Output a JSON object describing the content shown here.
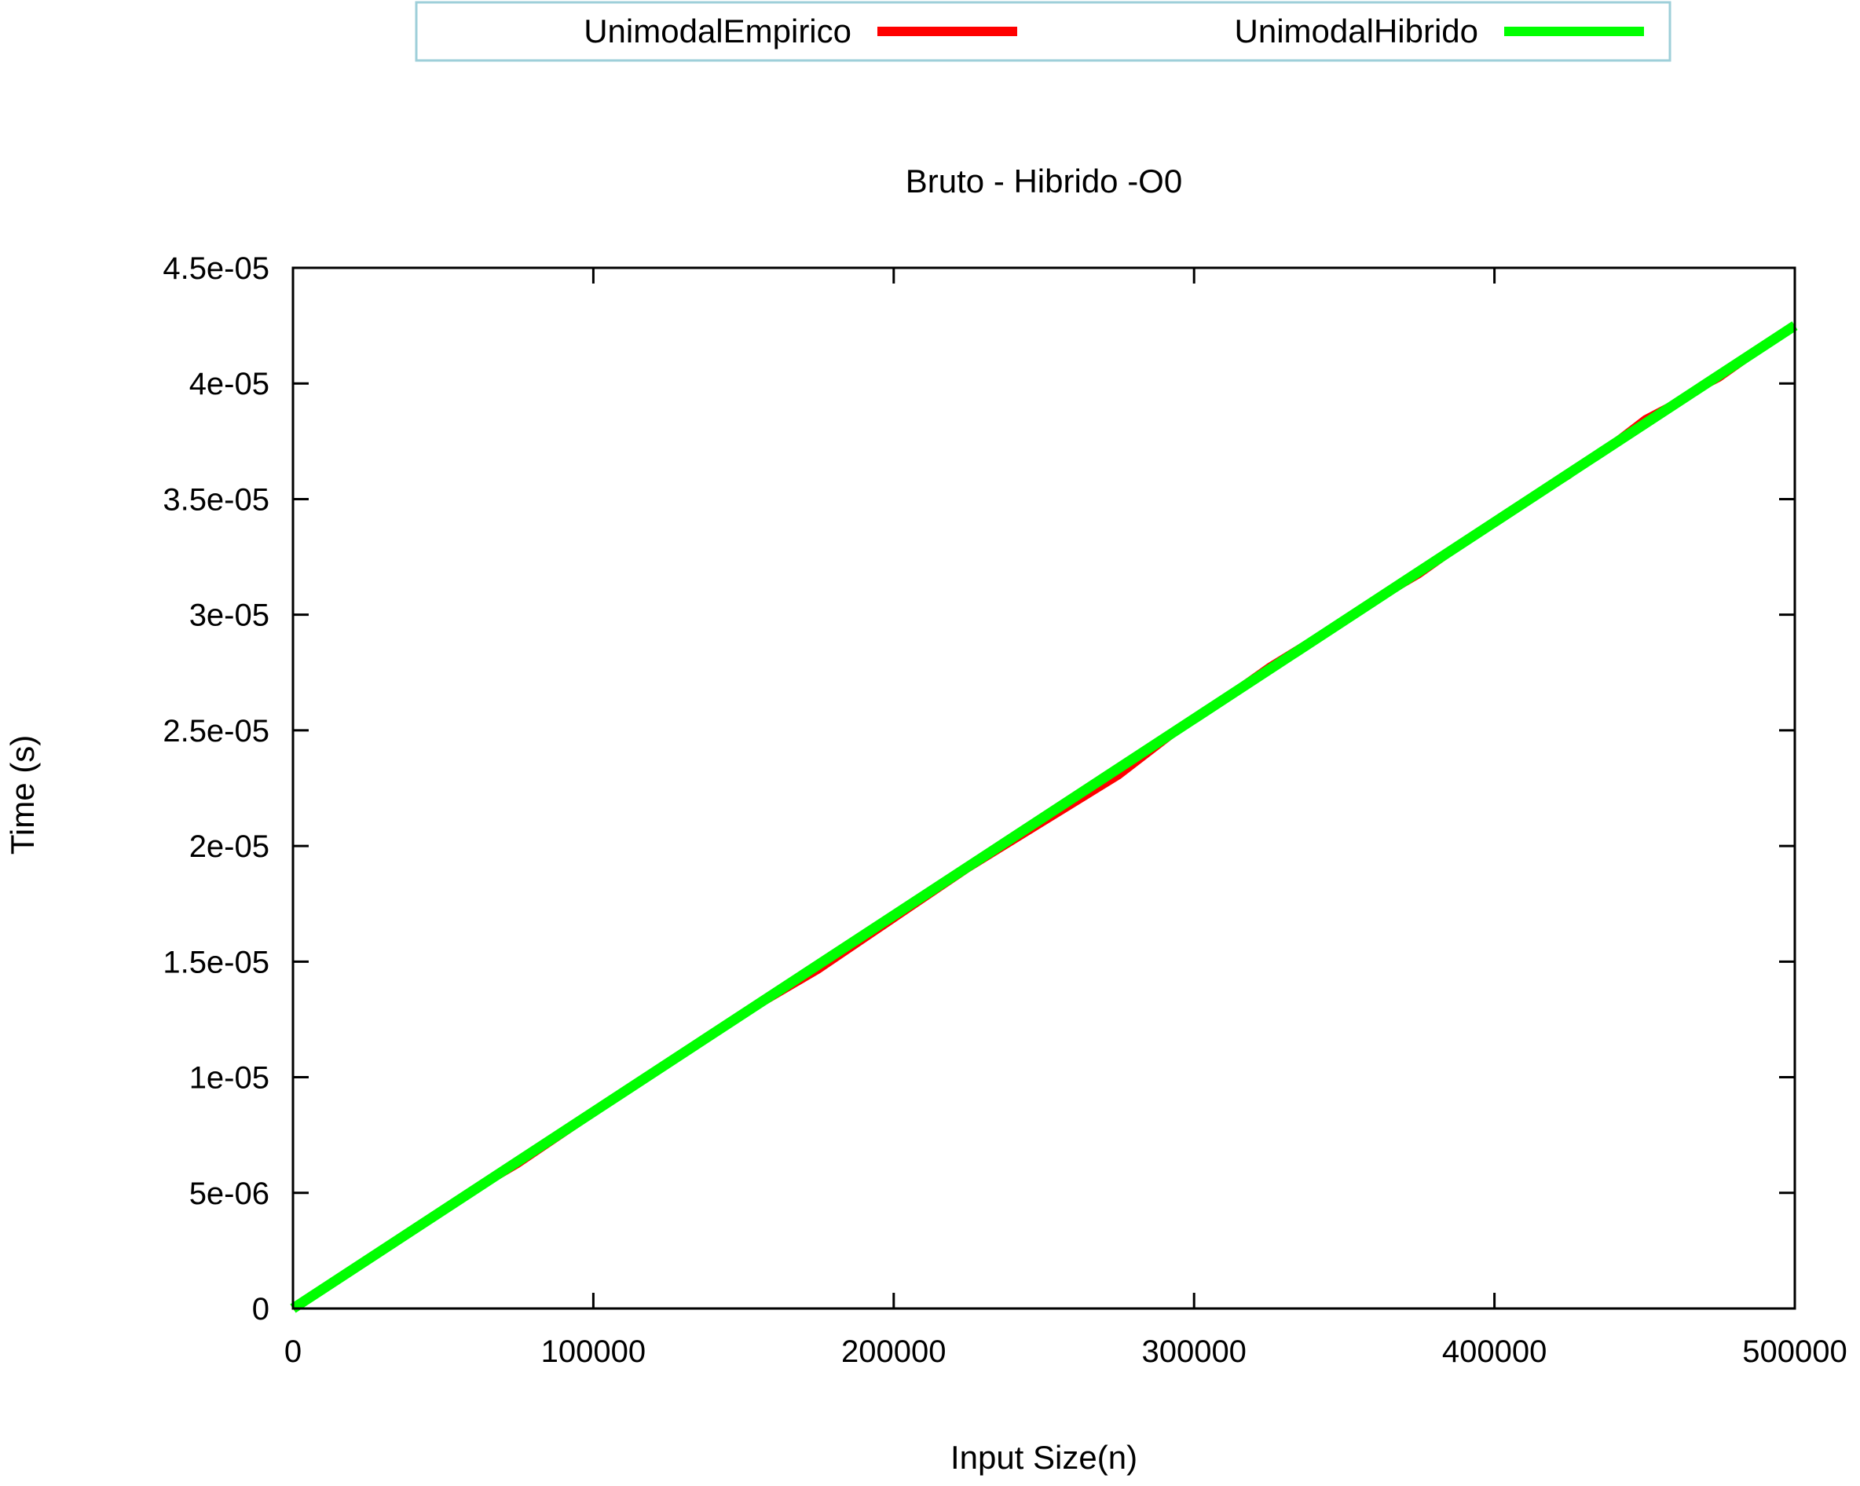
{
  "chart_data": {
    "type": "line",
    "title": "Bruto - Hibrido -O0",
    "xlabel": "Input Size(n)",
    "ylabel": "Time (s)",
    "xlim": [
      0,
      500000
    ],
    "ylim": [
      0,
      4.5e-05
    ],
    "x_ticks": [
      0,
      100000,
      200000,
      300000,
      400000,
      500000
    ],
    "x_tick_labels": [
      "0",
      "100000",
      "200000",
      "300000",
      "400000",
      "500000"
    ],
    "y_ticks": [
      0,
      5e-06,
      1e-05,
      1.5e-05,
      2e-05,
      2.5e-05,
      3e-05,
      3.5e-05,
      4e-05,
      4.5e-05
    ],
    "y_tick_labels": [
      "0",
      "5e-06",
      "1e-05",
      "1.5e-05",
      "2e-05",
      "2.5e-05",
      "3e-05",
      "3.5e-05",
      "4e-05",
      "4.5e-05"
    ],
    "grid": false,
    "legend_position": "top-center, outside plot",
    "series": [
      {
        "name": "UnimodalEmpirico",
        "color": "#ff0000",
        "x": [
          0,
          25000,
          50000,
          75000,
          100000,
          125000,
          150000,
          175000,
          200000,
          225000,
          250000,
          275000,
          300000,
          325000,
          350000,
          375000,
          400000,
          425000,
          450000,
          475000,
          500000
        ],
        "y": [
          0,
          2.1e-06,
          4.3e-06,
          6.2e-06,
          8.4e-06,
          1.06e-05,
          1.27e-05,
          1.46e-05,
          1.68e-05,
          1.9e-05,
          2.1e-05,
          2.3e-05,
          2.55e-05,
          2.78e-05,
          2.98e-05,
          3.17e-05,
          3.4e-05,
          3.6e-05,
          3.85e-05,
          4.02e-05,
          4.25e-05
        ]
      },
      {
        "name": "UnimodalHibrido",
        "color": "#00ff00",
        "x": [
          0,
          500000
        ],
        "y": [
          0,
          4.25e-05
        ]
      }
    ]
  }
}
